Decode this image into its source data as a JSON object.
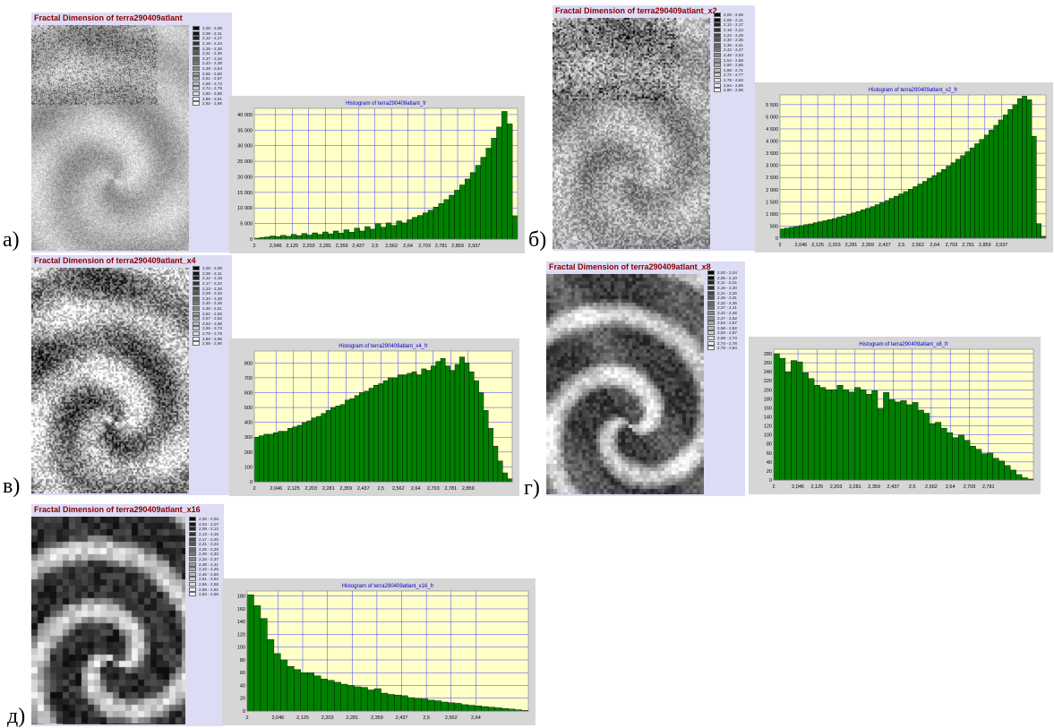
{
  "panels": [
    {
      "letter": "а)",
      "map": {
        "title": "Fractal Dimension of terra290409atlant",
        "legend": [
          "2,00 - 2,05",
          "2,06 - 2,11",
          "2,12 - 2,17",
          "2,18 - 2,24",
          "2,25 - 2,30",
          "2,31 - 2,36",
          "2,37 - 2,42",
          "2,43 - 2,48",
          "2,49 - 2,54",
          "2,55 - 2,60",
          "2,61 - 2,67",
          "2,68 - 2,73",
          "2,74 - 2,79",
          "2,80 - 2,85",
          "2,86 - 2,91",
          "2,92 - 2,98"
        ]
      },
      "colors": {
        "bar": "#008000",
        "plot_bg": "#ffffc8",
        "grid": "#4040ff",
        "title": "#0000cc"
      }
    },
    {
      "letter": "б)",
      "map": {
        "title": "Fractal Dimension of terra290409atlant_x2",
        "legend": [
          "2,00 - 2,05",
          "2,06 - 2,11",
          "2,12 - 2,17",
          "2,18 - 2,23",
          "2,24 - 2,29",
          "2,30 - 2,35",
          "2,36 - 2,41",
          "2,42 - 2,47",
          "2,48 - 2,53",
          "2,54 - 2,59",
          "2,60 - 2,65",
          "2,66 - 2,71",
          "2,72 - 2,77",
          "2,78 - 2,83",
          "2,84 - 2,89",
          "2,90 - 2,96"
        ]
      }
    },
    {
      "letter": "в)",
      "map": {
        "title": "Fractal Dimension of terra290409atlant_x4",
        "legend": [
          "2,00 - 2,05",
          "2,06 - 2,11",
          "2,12 - 2,16",
          "2,17 - 2,22",
          "2,23 - 2,28",
          "2,29 - 2,33",
          "2,34 - 2,39",
          "2,40 - 2,45",
          "2,46 - 2,51",
          "2,52 - 2,56",
          "2,57 - 2,62",
          "2,63 - 2,68",
          "2,69 - 2,74",
          "2,75 - 2,79",
          "2,80 - 2,85",
          "2,86 - 2,90"
        ]
      }
    },
    {
      "letter": "г)",
      "map": {
        "title": "Fractal Dimension of terra290409atlant_x8",
        "legend": [
          "2,00 - 2,04",
          "2,05 - 2,10",
          "2,11 - 2,15",
          "2,16 - 2,20",
          "2,21 - 2,25",
          "2,26 - 2,31",
          "2,32 - 2,36",
          "2,37 - 2,41",
          "2,42 - 2,46",
          "2,47 - 2,52",
          "2,53 - 2,57",
          "2,58 - 2,62",
          "2,63 - 2,67",
          "2,68 - 2,73",
          "2,74 - 2,78",
          "2,79 - 2,84"
        ]
      }
    },
    {
      "letter": "д)",
      "map": {
        "title": "Fractal Dimension of terra290409atlant_x16",
        "legend": [
          "2,00 - 2,03",
          "2,04 - 2,07",
          "2,08 - 2,12",
          "2,13 - 2,16",
          "2,17 - 2,20",
          "2,21 - 2,24",
          "2,25 - 2,29",
          "2,30 - 2,33",
          "2,34 - 2,37",
          "2,38 - 2,41",
          "2,42 - 2,45",
          "2,46 - 2,50",
          "2,51 - 2,54",
          "2,55 - 2,58",
          "2,59 - 2,62",
          "2,63 - 2,66"
        ]
      }
    }
  ],
  "chart_data": [
    {
      "type": "bar",
      "title": "Histogram of terra290409atlant_fr",
      "x_tick_labels": [
        "2",
        "2,046",
        "2,125",
        "2,203",
        "2,281",
        "2,359",
        "2,437",
        "2,5",
        "2,562",
        "2,64",
        "2,703",
        "2,781",
        "2,859",
        "2,937"
      ],
      "y_tick_labels": [
        "0",
        "5 000",
        "10 000",
        "15 000",
        "20 000",
        "25 000",
        "30 000",
        "35 000",
        "40 000"
      ],
      "ylim": [
        0,
        42000
      ],
      "values": [
        300,
        500,
        700,
        1000,
        800,
        1200,
        900,
        1500,
        1100,
        1800,
        1300,
        2000,
        1500,
        2300,
        1700,
        2600,
        1900,
        3000,
        2200,
        3500,
        2600,
        4000,
        3200,
        5000,
        3800,
        5200,
        4400,
        5800,
        5200,
        6200,
        7000,
        7600,
        8400,
        9300,
        10300,
        11400,
        12700,
        14100,
        15700,
        17400,
        19300,
        21400,
        23700,
        26300,
        29200,
        32400,
        36000,
        41000,
        37000,
        7500
      ]
    },
    {
      "type": "bar",
      "title": "Histogram of terra290409atlant_x2_fr",
      "x_tick_labels": [
        "2",
        "2,046",
        "2,125",
        "2,203",
        "2,281",
        "2,359",
        "2,437",
        "2,5",
        "2,562",
        "2,64",
        "2,703",
        "2,781",
        "2,859",
        "2,937"
      ],
      "y_tick_labels": [
        "0",
        "500",
        "1 000",
        "1 500",
        "2 000",
        "2 500",
        "3 000",
        "3 500",
        "4 000",
        "4 500",
        "5 000",
        "5 500"
      ],
      "ylim": [
        0,
        5900
      ],
      "values": [
        380,
        420,
        450,
        480,
        520,
        560,
        590,
        640,
        680,
        720,
        770,
        810,
        870,
        920,
        980,
        1040,
        1100,
        1170,
        1230,
        1300,
        1380,
        1460,
        1550,
        1640,
        1730,
        1820,
        1920,
        2020,
        2120,
        2230,
        2340,
        2460,
        2580,
        2700,
        2830,
        2970,
        3110,
        3250,
        3400,
        3560,
        3720,
        3890,
        4070,
        4250,
        4450,
        4650,
        4870,
        5080,
        5300,
        5500,
        5750,
        5850,
        5700,
        4200,
        600,
        80
      ]
    },
    {
      "type": "bar",
      "title": "Histogram of terra290409atlant_x4_fr",
      "x_tick_labels": [
        "2",
        "2,046",
        "2,125",
        "2,203",
        "2,281",
        "2,359",
        "2,437",
        "2,5",
        "2,562",
        "2,64",
        "2,703",
        "2,781",
        "2,859"
      ],
      "y_tick_labels": [
        "0",
        "100",
        "200",
        "300",
        "400",
        "500",
        "600",
        "700",
        "800"
      ],
      "ylim": [
        0,
        880
      ],
      "values": [
        300,
        310,
        320,
        320,
        330,
        340,
        340,
        360,
        370,
        380,
        400,
        410,
        430,
        440,
        460,
        480,
        500,
        510,
        520,
        550,
        560,
        580,
        600,
        610,
        630,
        650,
        660,
        680,
        700,
        700,
        720,
        720,
        730,
        740,
        720,
        760,
        750,
        780,
        810,
        830,
        780,
        750,
        790,
        840,
        800,
        740,
        680,
        600,
        480,
        360,
        240,
        140,
        60,
        20
      ]
    },
    {
      "type": "bar",
      "title": "Histogram of terra290409atlant_x8_fr",
      "x_tick_labels": [
        "2",
        "2,046",
        "2,125",
        "2,203",
        "2,281",
        "2,359",
        "2,437",
        "2,5",
        "2,562",
        "2,64",
        "2,703",
        "2,781"
      ],
      "y_tick_labels": [
        "0",
        "20",
        "40",
        "60",
        "80",
        "100",
        "120",
        "140",
        "160",
        "180",
        "200",
        "220",
        "240",
        "260",
        "280"
      ],
      "ylim": [
        0,
        290
      ],
      "values": [
        280,
        270,
        240,
        265,
        262,
        238,
        225,
        210,
        205,
        200,
        200,
        210,
        200,
        195,
        205,
        200,
        190,
        198,
        158,
        194,
        178,
        173,
        176,
        167,
        172,
        155,
        148,
        125,
        128,
        115,
        105,
        94,
        100,
        88,
        75,
        68,
        58,
        60,
        48,
        42,
        32,
        22,
        12,
        5,
        2
      ]
    },
    {
      "type": "bar",
      "title": "Histogram of terra290409atlant_x16_fr",
      "x_tick_labels": [
        "2",
        "2,046",
        "2,125",
        "2,203",
        "2,281",
        "2,359",
        "2,437",
        "2,5",
        "2,562",
        "2,64"
      ],
      "y_tick_labels": [
        "0",
        "20",
        "40",
        "60",
        "80",
        "100",
        "120",
        "140",
        "160",
        "180"
      ],
      "ylim": [
        0,
        188
      ],
      "values": [
        182,
        165,
        145,
        112,
        90,
        80,
        70,
        65,
        60,
        60,
        55,
        50,
        48,
        45,
        42,
        40,
        38,
        37,
        33,
        35,
        28,
        26,
        25,
        24,
        21,
        20,
        19,
        17,
        16,
        14,
        13,
        12,
        10,
        9,
        8,
        7,
        6,
        5,
        4,
        3,
        2,
        1
      ]
    }
  ]
}
